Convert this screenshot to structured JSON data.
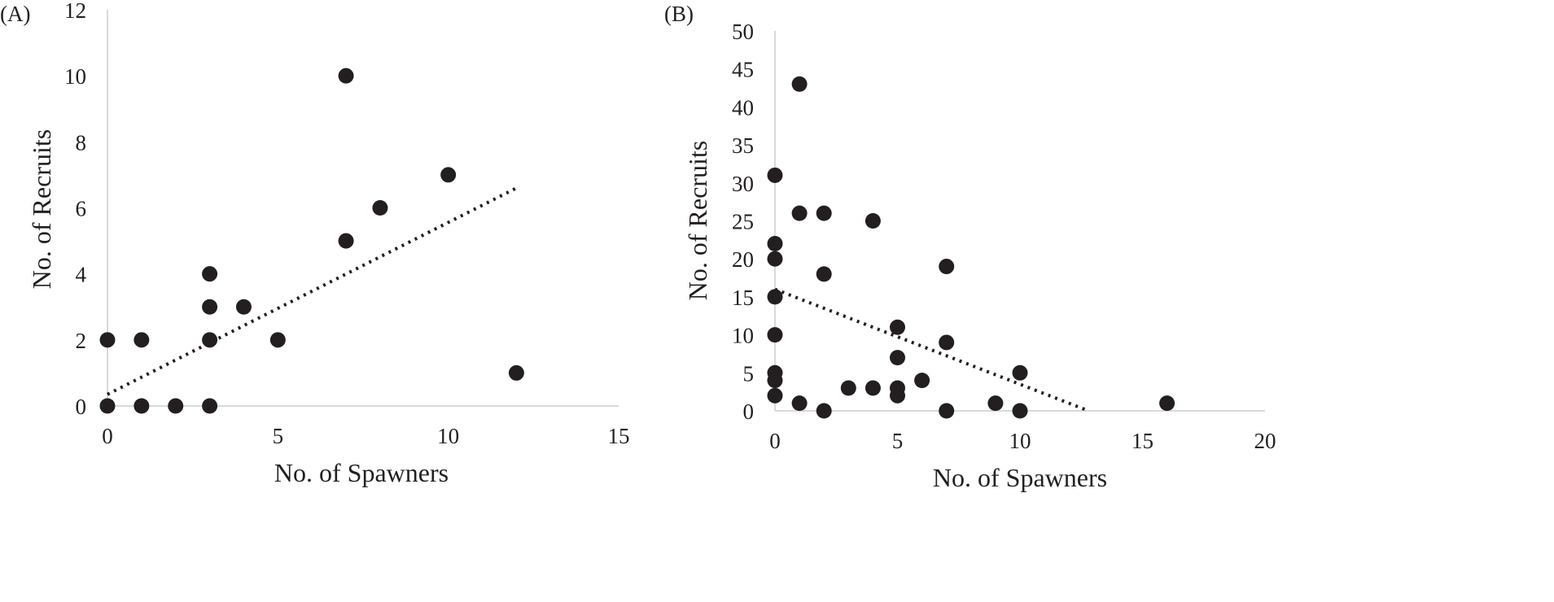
{
  "chart_data": [
    {
      "type": "scatter",
      "panel_label": "(A)",
      "xlabel": "No. of Spawners",
      "ylabel": "No. of Recruits",
      "xlim": [
        0,
        15
      ],
      "ylim": [
        0,
        12
      ],
      "xticks": [
        0,
        5,
        10,
        15
      ],
      "yticks": [
        0,
        2,
        4,
        6,
        8,
        10,
        12
      ],
      "grid": false,
      "points": [
        [
          0,
          2
        ],
        [
          0,
          0
        ],
        [
          1,
          2
        ],
        [
          1,
          0
        ],
        [
          2,
          0
        ],
        [
          3,
          4
        ],
        [
          3,
          3
        ],
        [
          3,
          2
        ],
        [
          3,
          0
        ],
        [
          4,
          3
        ],
        [
          5,
          2
        ],
        [
          7,
          10
        ],
        [
          7,
          5
        ],
        [
          8,
          6
        ],
        [
          10,
          7
        ],
        [
          12,
          1
        ]
      ],
      "trendline": {
        "style": "dotted",
        "x": [
          0,
          12
        ],
        "y": [
          0.35,
          6.6
        ]
      }
    },
    {
      "type": "scatter",
      "panel_label": "(B)",
      "xlabel": "No. of Spawners",
      "ylabel": "No. of Recruits",
      "xlim": [
        0,
        20
      ],
      "ylim": [
        0,
        50
      ],
      "xticks": [
        0,
        5,
        10,
        15,
        20
      ],
      "yticks": [
        0,
        5,
        10,
        15,
        20,
        25,
        30,
        35,
        40,
        45,
        50
      ],
      "grid": false,
      "points": [
        [
          0,
          31
        ],
        [
          0,
          22
        ],
        [
          0,
          20
        ],
        [
          0,
          15
        ],
        [
          0,
          10
        ],
        [
          0,
          5
        ],
        [
          0,
          4
        ],
        [
          0,
          2
        ],
        [
          1,
          43
        ],
        [
          1,
          26
        ],
        [
          1,
          1
        ],
        [
          2,
          26
        ],
        [
          2,
          18
        ],
        [
          2,
          0
        ],
        [
          3,
          3
        ],
        [
          4,
          25
        ],
        [
          4,
          3
        ],
        [
          5,
          11
        ],
        [
          5,
          7
        ],
        [
          5,
          3
        ],
        [
          5,
          2
        ],
        [
          6,
          4
        ],
        [
          7,
          19
        ],
        [
          7,
          9
        ],
        [
          7,
          0
        ],
        [
          9,
          1
        ],
        [
          10,
          5
        ],
        [
          10,
          0
        ],
        [
          16,
          1
        ]
      ],
      "trendline": {
        "style": "dotted",
        "x": [
          0,
          12.8
        ],
        "y": [
          16,
          0
        ]
      }
    }
  ]
}
